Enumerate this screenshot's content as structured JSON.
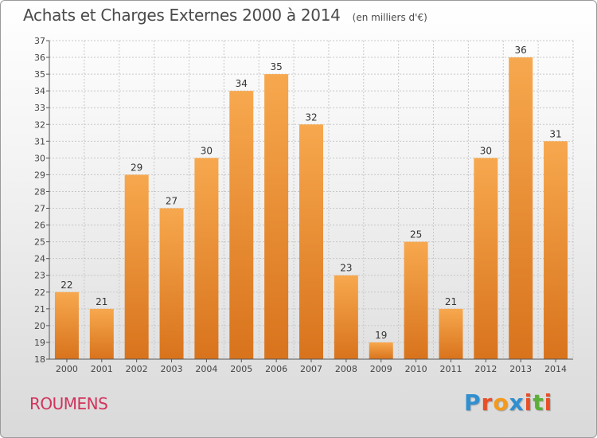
{
  "header": {
    "title": "Achats et Charges Externes 2000 à 2014",
    "subtitle": "(en milliers d'€)"
  },
  "footer": {
    "commune": "ROUMENS",
    "brand": "Proxiti"
  },
  "colors": {
    "bar_light": "#f7a84e",
    "bar_dark": "#d8731c",
    "commune": "#d2335c",
    "axis": "#555555",
    "grid": "#c8c8c8",
    "brand_letters": [
      "#2f8fd1",
      "#e94e26",
      "#f39a1e",
      "#2f8fd1",
      "#e94e26",
      "#5cae3a",
      "#e94e26"
    ]
  },
  "chart_data": {
    "type": "bar",
    "categories": [
      "2000",
      "2001",
      "2002",
      "2003",
      "2004",
      "2005",
      "2006",
      "2007",
      "2008",
      "2009",
      "2010",
      "2011",
      "2012",
      "2013",
      "2014"
    ],
    "values": [
      22,
      21,
      29,
      27,
      30,
      34,
      35,
      32,
      23,
      19,
      25,
      21,
      30,
      36,
      31
    ],
    "ylim": [
      18,
      37
    ],
    "yticks": [
      18,
      19,
      20,
      21,
      22,
      23,
      24,
      25,
      26,
      27,
      28,
      29,
      30,
      31,
      32,
      33,
      34,
      35,
      36,
      37
    ],
    "grid": true,
    "data_labels": true
  }
}
